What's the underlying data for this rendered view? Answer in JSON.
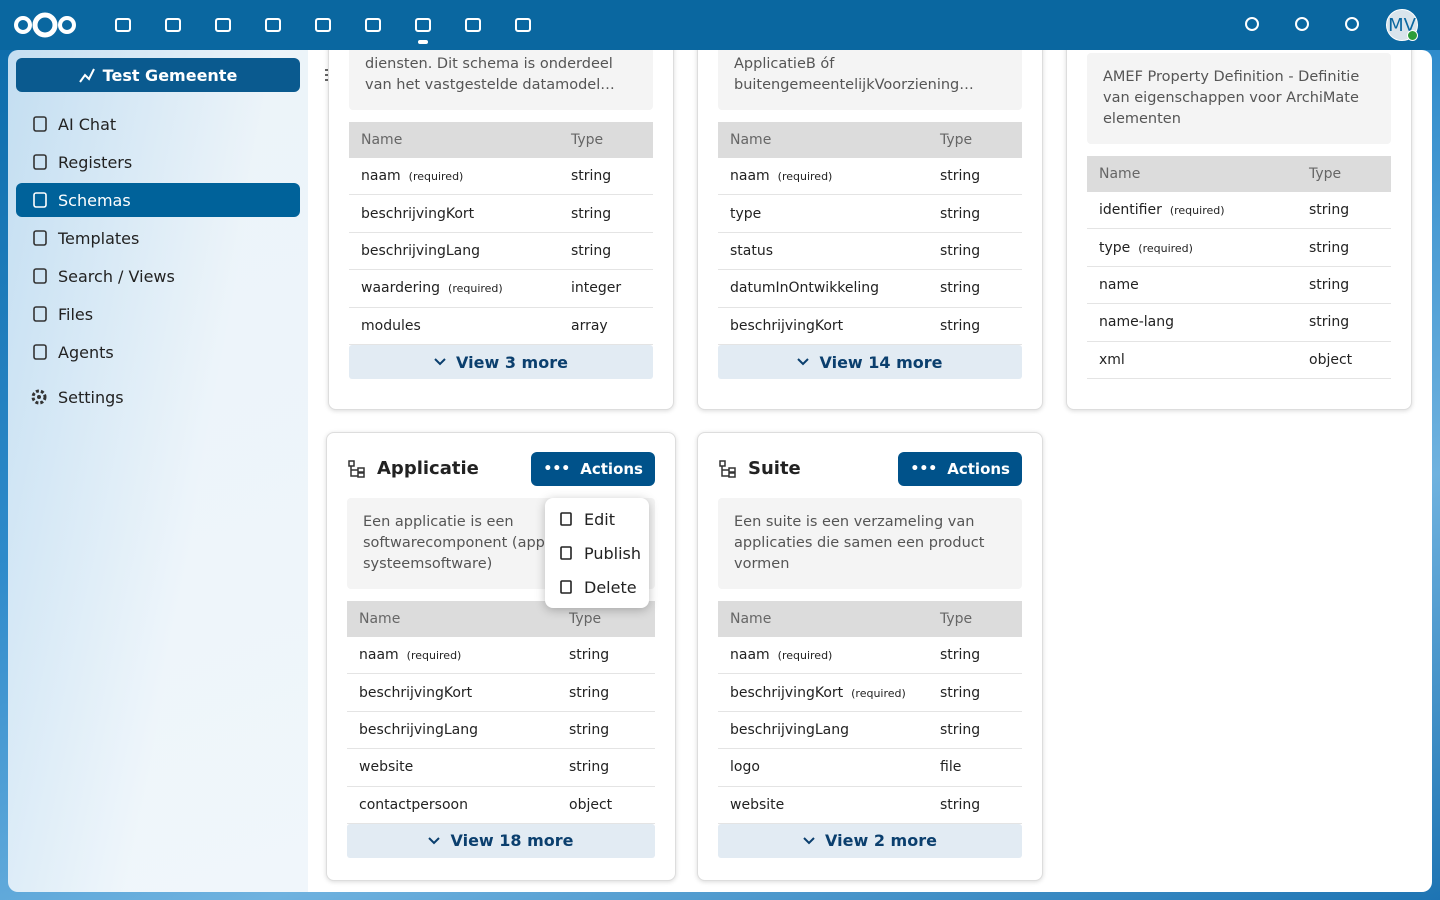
{
  "topbar": {
    "avatar": "MV"
  },
  "sidebar": {
    "organization": "Test Gemeente",
    "items": [
      "AI Chat",
      "Registers",
      "Schemas",
      "Templates",
      "Search / Views",
      "Files",
      "Agents"
    ],
    "settings": "Settings"
  },
  "top_cards": [
    {
      "description": "waarderingen van applicaties en diensten. Dit schema is onderdeel van het vastgestelde datamodel…",
      "columns": [
        "Name",
        "Type"
      ],
      "rows": [
        {
          "name": "naam",
          "tag": "(required)",
          "type": "string"
        },
        {
          "name": "beschrijvingKort",
          "type": "string"
        },
        {
          "name": "beschrijvingLang",
          "type": "string"
        },
        {
          "name": "waardering",
          "tag": "(required)",
          "type": "integer"
        },
        {
          "name": "modules",
          "type": "array"
        }
      ],
      "more": "View 3 more"
    },
    {
      "description": "applicaties en systemen. Er moet óf ApplicatieB óf buitengemeentelijkVoorziening…",
      "columns": [
        "Name",
        "Type"
      ],
      "rows": [
        {
          "name": "naam",
          "tag": "(required)",
          "type": "string"
        },
        {
          "name": "type",
          "type": "string"
        },
        {
          "name": "status",
          "type": "string"
        },
        {
          "name": "datumInOntwikkeling",
          "type": "string"
        },
        {
          "name": "beschrijvingKort",
          "type": "string"
        }
      ],
      "more": "View 14 more"
    },
    {
      "description": "AMEF Property Definition - Definitie van eigenschappen voor ArchiMate elementen",
      "columns": [
        "Name",
        "Type"
      ],
      "rows": [
        {
          "name": "identifier",
          "tag": "(required)",
          "type": "string"
        },
        {
          "name": "type",
          "tag": "(required)",
          "type": "string"
        },
        {
          "name": "name",
          "type": "string"
        },
        {
          "name": "name-lang",
          "type": "string"
        },
        {
          "name": "xml",
          "type": "object"
        }
      ]
    }
  ],
  "bottom_cards": [
    {
      "title": "Applicatie",
      "actions": "Actions",
      "description": "Een applicatie is een softwarecomponent (app systeemsoftware)",
      "columns": [
        "Name",
        "Type"
      ],
      "rows": [
        {
          "name": "naam",
          "tag": "(required)",
          "type": "string"
        },
        {
          "name": "beschrijvingKort",
          "type": "string"
        },
        {
          "name": "beschrijvingLang",
          "type": "string"
        },
        {
          "name": "website",
          "type": "string"
        },
        {
          "name": "contactpersoon",
          "type": "object"
        }
      ],
      "more": "View 18 more"
    },
    {
      "title": "Suite",
      "actions": "Actions",
      "description": "Een suite is een verzameling van applicaties die samen een product vormen",
      "columns": [
        "Name",
        "Type"
      ],
      "rows": [
        {
          "name": "naam",
          "tag": "(required)",
          "type": "string"
        },
        {
          "name": "beschrijvingKort",
          "tag": "(required)",
          "type": "string"
        },
        {
          "name": "beschrijvingLang",
          "type": "string"
        },
        {
          "name": "logo",
          "type": "file"
        },
        {
          "name": "website",
          "type": "string"
        }
      ],
      "more": "View 2 more"
    }
  ],
  "actions_menu": [
    "Edit",
    "Publish",
    "Delete"
  ]
}
